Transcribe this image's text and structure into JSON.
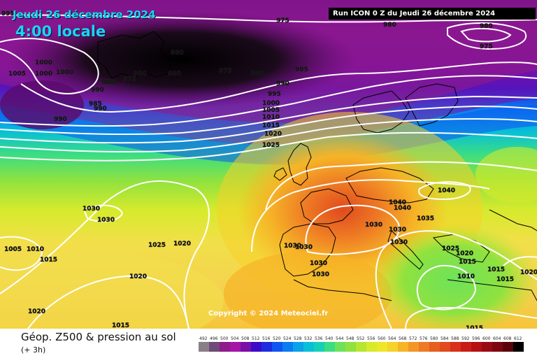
{
  "header": {
    "date": "Jeudi 26 décembre 2024",
    "time": "4:00 locale",
    "run_info": "Run ICON 0 Z du Jeudi 26 décembre 2024"
  },
  "copyright": "Copyright © 2024 Meteociel.fr",
  "footer": {
    "title": "Géop. Z500 & pression au sol",
    "subtitle": "(+ 3h)"
  },
  "scale": {
    "values": [
      "492",
      "496",
      "500",
      "504",
      "508",
      "512",
      "516",
      "520",
      "524",
      "528",
      "532",
      "536",
      "540",
      "544",
      "548",
      "552",
      "556",
      "560",
      "564",
      "568",
      "572",
      "576",
      "580",
      "584",
      "588",
      "592",
      "596",
      "600",
      "604",
      "608",
      "612"
    ],
    "colors": [
      "#8a7f88",
      "#6f4a78",
      "#8f1a8a",
      "#a415a8",
      "#7a0ea6",
      "#3a0cc7",
      "#1d2ce0",
      "#0f55f0",
      "#0b7cf2",
      "#0aa2e8",
      "#08bfd8",
      "#14d0b6",
      "#3bdd82",
      "#6ee25a",
      "#8fe23f",
      "#b6e631",
      "#d7ea2c",
      "#efe62a",
      "#f6d22a",
      "#f6b427",
      "#f3962a",
      "#ee7a24",
      "#e55f1f",
      "#e04a1e",
      "#d8301b",
      "#c81d16",
      "#b50f13",
      "#990b12",
      "#7c070f",
      "#5a040a",
      "#000000"
    ]
  },
  "pressure_labels": [
    {
      "text": "995",
      "tone": "white"
    },
    {
      "text": "1005",
      "tone": "white"
    },
    {
      "text": "1000",
      "tone": "white"
    },
    {
      "text": "1000",
      "tone": "white"
    },
    {
      "text": "1000",
      "tone": "white"
    },
    {
      "text": "975",
      "tone": "white"
    },
    {
      "text": "980",
      "tone": "white"
    },
    {
      "text": "980",
      "tone": "white"
    },
    {
      "text": "975",
      "tone": "white"
    },
    {
      "text": "980",
      "tone": "white"
    },
    {
      "text": "980",
      "tone": "white"
    },
    {
      "text": "985",
      "tone": "white"
    },
    {
      "text": "990",
      "tone": "white"
    },
    {
      "text": "990",
      "tone": "white"
    },
    {
      "text": "995",
      "tone": "white"
    },
    {
      "text": "1000",
      "tone": "white"
    },
    {
      "text": "1005",
      "tone": "white"
    },
    {
      "text": "1010",
      "tone": "white"
    },
    {
      "text": "1015",
      "tone": "white"
    },
    {
      "text": "1020",
      "tone": "white"
    },
    {
      "text": "1025",
      "tone": "white"
    },
    {
      "text": "990",
      "tone": "white"
    },
    {
      "text": "990",
      "tone": "white"
    },
    {
      "text": "985",
      "tone": "white"
    },
    {
      "text": "990",
      "tone": "white"
    },
    {
      "text": "990",
      "tone": "white"
    },
    {
      "text": "975",
      "tone": "white"
    },
    {
      "text": "980",
      "tone": "white"
    },
    {
      "text": "975",
      "tone": "white"
    },
    {
      "text": "980",
      "tone": "white"
    },
    {
      "text": "1030",
      "tone": "white"
    },
    {
      "text": "1030",
      "tone": "white"
    },
    {
      "text": "1025",
      "tone": "white"
    },
    {
      "text": "1020",
      "tone": "white"
    },
    {
      "text": "1005",
      "tone": "white"
    },
    {
      "text": "1010",
      "tone": "white"
    },
    {
      "text": "1015",
      "tone": "white"
    },
    {
      "text": "1020",
      "tone": "white"
    },
    {
      "text": "1020",
      "tone": "white"
    },
    {
      "text": "1015",
      "tone": "white"
    },
    {
      "text": "1030",
      "tone": "white"
    },
    {
      "text": "1030",
      "tone": "white"
    },
    {
      "text": "1030",
      "tone": "white"
    },
    {
      "text": "1030",
      "tone": "white"
    },
    {
      "text": "1030",
      "tone": "white"
    },
    {
      "text": "1040",
      "tone": "white"
    },
    {
      "text": "1040",
      "tone": "white"
    },
    {
      "text": "1040",
      "tone": "white"
    },
    {
      "text": "1035",
      "tone": "white"
    },
    {
      "text": "1030",
      "tone": "white"
    },
    {
      "text": "1030",
      "tone": "white"
    },
    {
      "text": "1025",
      "tone": "white"
    },
    {
      "text": "1020",
      "tone": "white"
    },
    {
      "text": "1015",
      "tone": "white"
    },
    {
      "text": "1015",
      "tone": "white"
    },
    {
      "text": "1010",
      "tone": "white"
    },
    {
      "text": "1015",
      "tone": "white"
    },
    {
      "text": "1020",
      "tone": "white"
    },
    {
      "text": "1015",
      "tone": "white"
    }
  ]
}
